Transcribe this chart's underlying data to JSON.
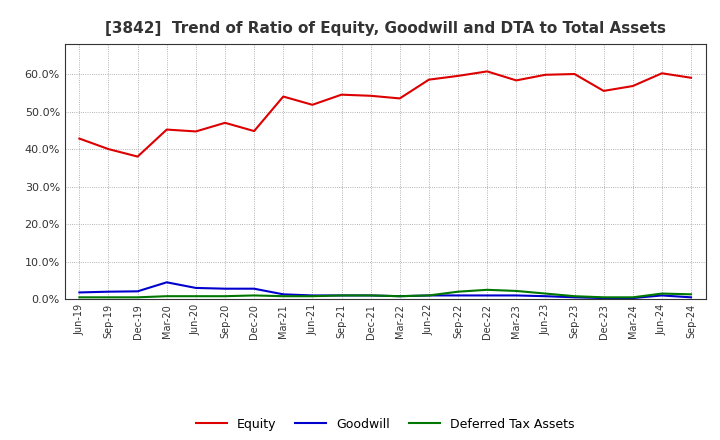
{
  "title": "[3842]  Trend of Ratio of Equity, Goodwill and DTA to Total Assets",
  "x_labels": [
    "Jun-19",
    "Sep-19",
    "Dec-19",
    "Mar-20",
    "Jun-20",
    "Sep-20",
    "Dec-20",
    "Mar-21",
    "Jun-21",
    "Sep-21",
    "Dec-21",
    "Mar-22",
    "Jun-22",
    "Sep-22",
    "Dec-22",
    "Mar-23",
    "Jun-23",
    "Sep-23",
    "Dec-23",
    "Mar-24",
    "Jun-24",
    "Sep-24"
  ],
  "equity": [
    0.428,
    0.4,
    0.38,
    0.452,
    0.447,
    0.47,
    0.448,
    0.54,
    0.518,
    0.545,
    0.542,
    0.535,
    0.585,
    0.595,
    0.607,
    0.583,
    0.598,
    0.6,
    0.555,
    0.568,
    0.602,
    0.59
  ],
  "goodwill": [
    0.018,
    0.02,
    0.021,
    0.045,
    0.03,
    0.028,
    0.028,
    0.013,
    0.01,
    0.01,
    0.01,
    0.008,
    0.01,
    0.01,
    0.01,
    0.01,
    0.008,
    0.005,
    0.003,
    0.003,
    0.01,
    0.005
  ],
  "dta": [
    0.005,
    0.005,
    0.005,
    0.008,
    0.008,
    0.008,
    0.01,
    0.008,
    0.008,
    0.01,
    0.01,
    0.008,
    0.01,
    0.02,
    0.025,
    0.022,
    0.015,
    0.008,
    0.005,
    0.005,
    0.015,
    0.013
  ],
  "equity_color": "#dd0000",
  "goodwill_color": "#0000cc",
  "dta_color": "#007700",
  "bg_color": "#ffffff",
  "grid_color": "#999999",
  "ylim": [
    0.0,
    0.68
  ],
  "yticks": [
    0.0,
    0.1,
    0.2,
    0.3,
    0.4,
    0.5,
    0.6
  ],
  "legend_labels": [
    "Equity",
    "Goodwill",
    "Deferred Tax Assets"
  ]
}
